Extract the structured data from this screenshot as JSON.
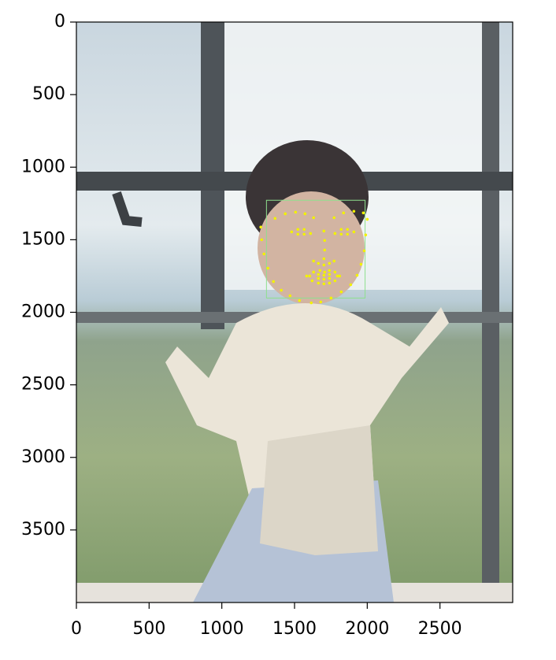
{
  "chart_data": {
    "type": "scatter",
    "color": "#f2f200",
    "x": [
      1268,
      1274,
      1290,
      1317,
      1355,
      1409,
      1469,
      1534,
      1615,
      1680,
      1751,
      1821,
      1886,
      1930,
      1957,
      1979,
      1989,
      1366,
      1436,
      1507,
      1572,
      1631,
      1772,
      1837,
      1908,
      1973,
      2000,
      1702,
      1707,
      1707,
      1702,
      1631,
      1664,
      1702,
      1740,
      1772,
      1480,
      1523,
      1566,
      1610,
      1566,
      1523,
      1778,
      1821,
      1864,
      1908,
      1864,
      1821,
      1583,
      1631,
      1675,
      1707,
      1740,
      1778,
      1810,
      1778,
      1740,
      1702,
      1664,
      1621,
      1604,
      1664,
      1702,
      1740,
      1794,
      1740,
      1702,
      1664
    ],
    "values": [
      1413,
      1500,
      1598,
      1696,
      1788,
      1848,
      1886,
      1919,
      1935,
      1929,
      1902,
      1859,
      1810,
      1745,
      1669,
      1576,
      1467,
      1353,
      1321,
      1310,
      1321,
      1348,
      1348,
      1315,
      1304,
      1315,
      1359,
      1440,
      1505,
      1571,
      1631,
      1647,
      1663,
      1674,
      1663,
      1647,
      1446,
      1429,
      1429,
      1457,
      1462,
      1462,
      1457,
      1429,
      1429,
      1446,
      1462,
      1462,
      1750,
      1723,
      1712,
      1723,
      1712,
      1723,
      1750,
      1783,
      1799,
      1804,
      1799,
      1783,
      1750,
      1739,
      1745,
      1739,
      1750,
      1766,
      1772,
      1766
    ],
    "box": {
      "x": [
        1307,
        1985
      ],
      "y": [
        1228,
        1902
      ],
      "color": "#8ee08e"
    },
    "xlim": [
      0,
      3000
    ],
    "ylim": [
      4000,
      0
    ],
    "xticks": [
      0,
      500,
      1000,
      1500,
      2000,
      2500
    ],
    "yticks": [
      0,
      500,
      1000,
      1500,
      2000,
      2500,
      3000,
      3500
    ]
  }
}
